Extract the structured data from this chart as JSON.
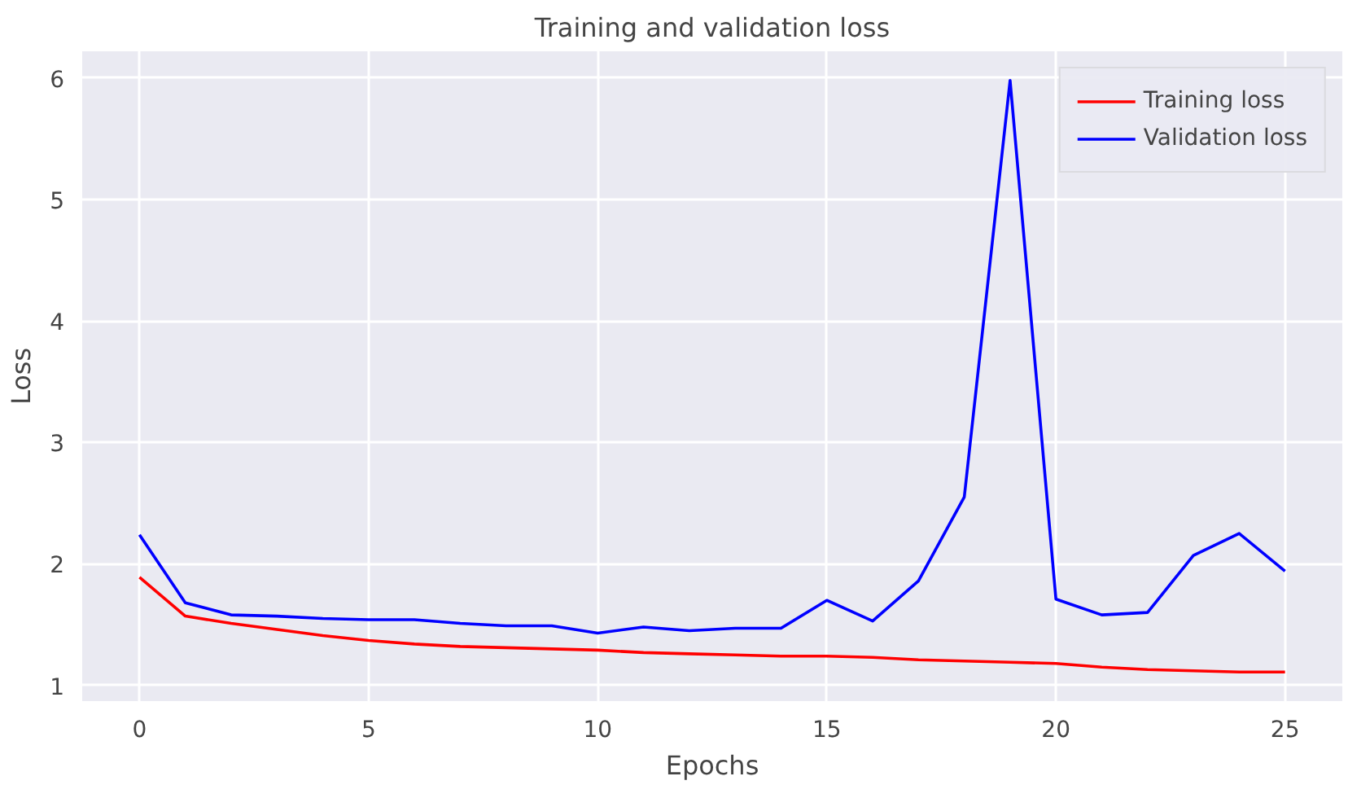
{
  "chart_data": {
    "type": "line",
    "title": "Training and validation loss",
    "xlabel": "Epochs",
    "ylabel": "Loss",
    "x": [
      0,
      1,
      2,
      3,
      4,
      5,
      6,
      7,
      8,
      9,
      10,
      11,
      12,
      13,
      14,
      15,
      16,
      17,
      18,
      19,
      20,
      21,
      22,
      23,
      24,
      25
    ],
    "series": [
      {
        "name": "Training loss",
        "color": "#ff0000",
        "values": [
          1.89,
          1.57,
          1.51,
          1.46,
          1.41,
          1.37,
          1.34,
          1.32,
          1.31,
          1.3,
          1.29,
          1.27,
          1.26,
          1.25,
          1.24,
          1.24,
          1.23,
          1.21,
          1.2,
          1.19,
          1.18,
          1.15,
          1.13,
          1.12,
          1.11,
          1.11
        ]
      },
      {
        "name": "Validation loss",
        "color": "#0000ff",
        "values": [
          2.24,
          1.68,
          1.58,
          1.57,
          1.55,
          1.54,
          1.54,
          1.51,
          1.49,
          1.49,
          1.43,
          1.48,
          1.45,
          1.47,
          1.47,
          1.7,
          1.53,
          1.86,
          2.55,
          5.98,
          1.71,
          1.58,
          1.6,
          2.07,
          2.25,
          1.94
        ]
      }
    ],
    "xlim": [
      -1.25,
      26.25
    ],
    "ylim": [
      0.87,
      6.22
    ],
    "xticks": [
      0,
      5,
      10,
      15,
      20,
      25
    ],
    "yticks": [
      1,
      2,
      3,
      4,
      5,
      6
    ],
    "grid": true,
    "legend": "top right",
    "marker": "none",
    "line_style": "solid"
  }
}
